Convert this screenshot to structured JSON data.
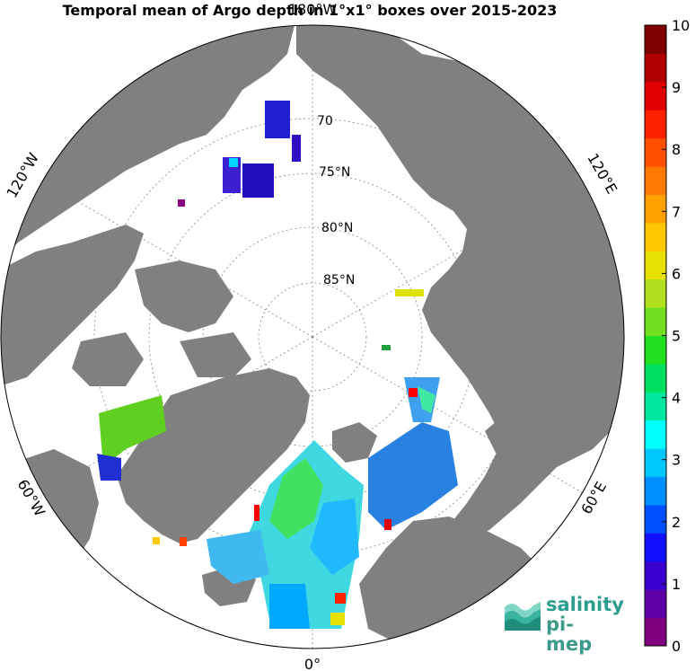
{
  "title": "Temporal mean of Argo depth in 1°x1° boxes over 2015-2023",
  "map": {
    "projection": "north polar stereographic",
    "colors": {
      "land": "#808080",
      "ocean": "#ffffff",
      "grid": "#888888"
    },
    "longitude_labels": {
      "top": "180°W",
      "left_upper": "120°W",
      "left_lower": "60°W",
      "right_upper": "120°E",
      "right_lower": "60°E",
      "bottom": "0°"
    },
    "latitude_labels": [
      "70",
      "75°N",
      "80°N",
      "85°N"
    ]
  },
  "colorbar": {
    "min": 0,
    "max": 10,
    "tick_labels": [
      "10",
      "9",
      "8",
      "7",
      "6",
      "5",
      "4",
      "3",
      "2",
      "1",
      "0"
    ],
    "colors": [
      "#800080",
      "#5d00a8",
      "#3a00d0",
      "#1010ff",
      "#0050ff",
      "#0090ff",
      "#00c8ff",
      "#00ffff",
      "#00e8a0",
      "#00e060",
      "#20e020",
      "#70e020",
      "#b0e020",
      "#e8e000",
      "#ffc800",
      "#ffa000",
      "#ff7800",
      "#ff5000",
      "#ff2000",
      "#e00000",
      "#b00000",
      "#800000"
    ]
  },
  "logo": {
    "line1": "salinity",
    "line2": "pi-mep"
  }
}
